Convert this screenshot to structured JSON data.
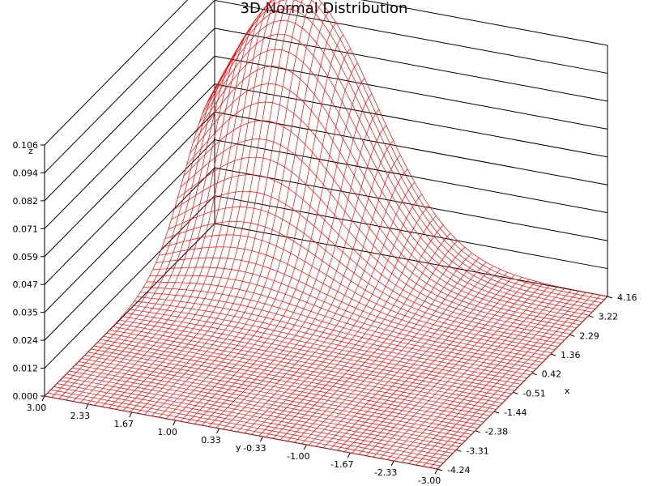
{
  "chart_data": {
    "type": "surface",
    "title": "3D Normal Distribution",
    "xlabel": "x",
    "ylabel": "y",
    "zlabel": "z",
    "xlim": [
      -4.24,
      4.16
    ],
    "ylim": [
      -3.0,
      3.0
    ],
    "zlim": [
      0.0,
      0.106
    ],
    "x_ticks": [
      "-4.24",
      "-3.31",
      "-2.38",
      "-1.44",
      "-0.51",
      "0.42",
      "1.36",
      "2.29",
      "3.22",
      "4.16"
    ],
    "y_ticks": [
      "3.00",
      "2.33",
      "1.67",
      "1.00",
      "0.33",
      "-0.33",
      "-1.00",
      "-1.67",
      "-2.33",
      "-3.00"
    ],
    "z_ticks": [
      "0.000",
      "0.012",
      "0.024",
      "0.035",
      "0.047",
      "0.059",
      "0.071",
      "0.082",
      "0.094",
      "0.106"
    ],
    "surface": {
      "peak_x": 4.16,
      "peak_y": 1.7,
      "sigma_x": 1.5,
      "sigma_y": 1.15,
      "peak_z": 0.106
    },
    "mesh_color": "#ff0000",
    "grid": true
  }
}
